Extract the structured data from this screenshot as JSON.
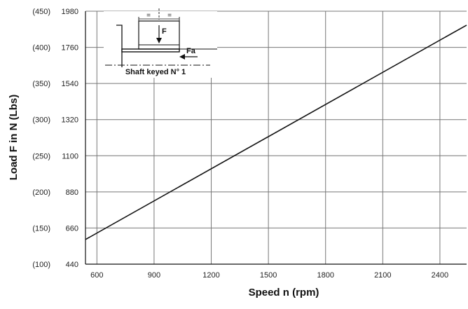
{
  "chart_data": {
    "type": "line",
    "xlabel": "Speed n  (rpm)",
    "ylabel": "Load F in N (Lbs)",
    "x_ticks": [
      "600",
      "900",
      "1200",
      "1500",
      "1800",
      "2100",
      "2400"
    ],
    "y_ticks": [
      {
        "n": "440",
        "lbs": "(100)"
      },
      {
        "n": "660",
        "lbs": "(150)"
      },
      {
        "n": "880",
        "lbs": "(200)"
      },
      {
        "n": "1100",
        "lbs": "(250)"
      },
      {
        "n": "1320",
        "lbs": "(300)"
      },
      {
        "n": "1540",
        "lbs": "(350)"
      },
      {
        "n": "1760",
        "lbs": "(400)"
      },
      {
        "n": "1980",
        "lbs": "(450)"
      }
    ],
    "xlim": [
      540,
      2540
    ],
    "ylim": [
      440,
      1980
    ],
    "grid": true,
    "series": [
      {
        "points": [
          [
            540,
            590
          ],
          [
            2540,
            1895
          ]
        ]
      }
    ],
    "inset": {
      "label": "Shaft keyed N° 1",
      "force_label": "F",
      "axial_label": "Fa",
      "equal_mark": "="
    }
  }
}
